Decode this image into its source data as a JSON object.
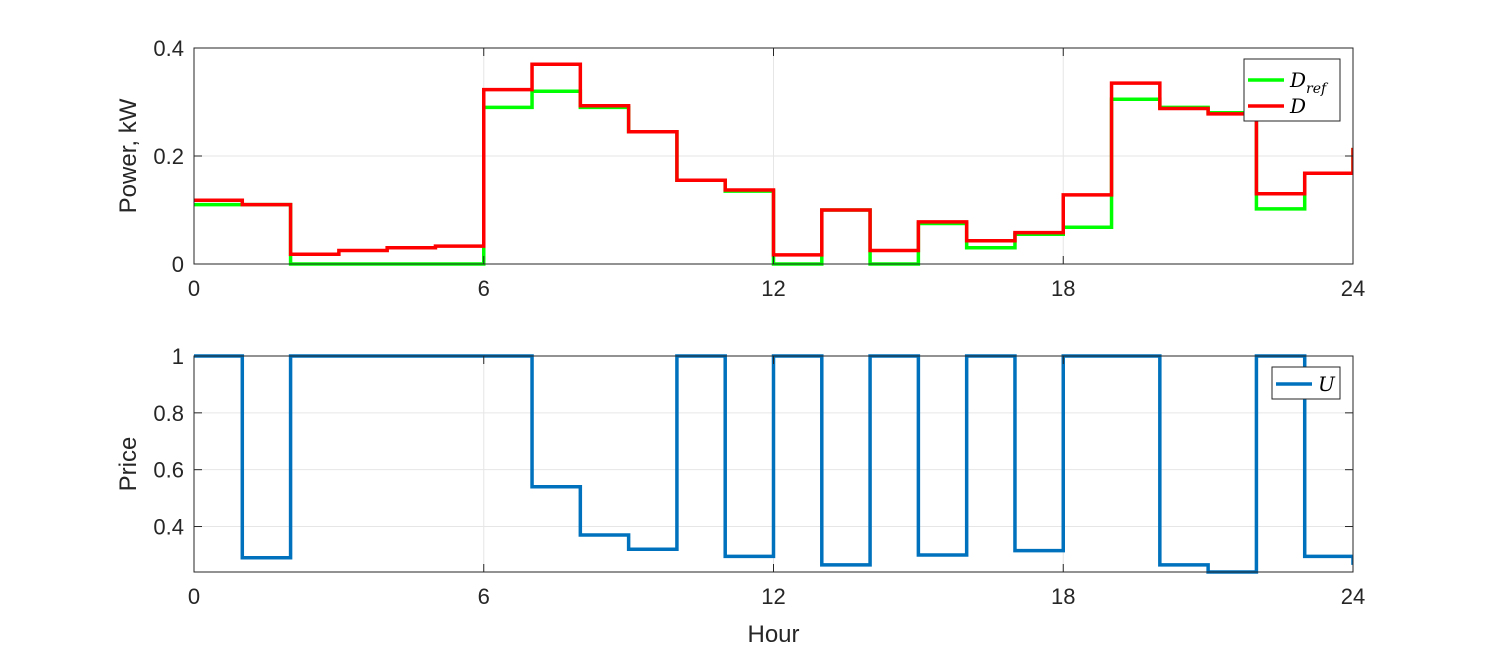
{
  "chart_data": [
    {
      "type": "line",
      "style": "stairs",
      "x_axis": {
        "label": "",
        "ticks": [
          "0",
          "6",
          "12",
          "18",
          "24"
        ],
        "range": [
          0,
          24
        ]
      },
      "y_axis": {
        "label": "Power, kW",
        "ticks": [
          "0",
          "0.2",
          "0.4"
        ],
        "range": [
          0,
          0.4
        ]
      },
      "grid": true,
      "legend": {
        "placement": "top-right"
      },
      "series": [
        {
          "name": "D_ref",
          "legend_main": "D",
          "legend_sub": "ref",
          "color": "#00ff00",
          "values": [
            0.11,
            0.11,
            0.0,
            0.0,
            0.0,
            0.0,
            0.29,
            0.32,
            0.29,
            0.245,
            0.155,
            0.135,
            0.0,
            0.1,
            0.0,
            0.075,
            0.03,
            0.055,
            0.068,
            0.305,
            0.29,
            0.28,
            0.102,
            0.168,
            0.215
          ]
        },
        {
          "name": "D",
          "legend_main": "D",
          "legend_sub": "",
          "color": "#ff0000",
          "values": [
            0.118,
            0.11,
            0.018,
            0.025,
            0.03,
            0.033,
            0.323,
            0.37,
            0.293,
            0.245,
            0.155,
            0.137,
            0.017,
            0.1,
            0.025,
            0.078,
            0.043,
            0.058,
            0.128,
            0.335,
            0.288,
            0.278,
            0.13,
            0.168,
            0.215
          ]
        }
      ]
    },
    {
      "type": "line",
      "style": "stairs",
      "x_axis": {
        "label": "Hour",
        "ticks": [
          "0",
          "6",
          "12",
          "18",
          "24"
        ],
        "range": [
          0,
          24
        ]
      },
      "y_axis": {
        "label": "Price",
        "ticks": [
          "0.4",
          "0.6",
          "0.8",
          "1"
        ],
        "range": [
          0.24,
          1.0
        ]
      },
      "grid": true,
      "legend": {
        "placement": "top-right"
      },
      "series": [
        {
          "name": "U",
          "legend_main": "U",
          "legend_sub": "",
          "color": "#0072bd",
          "values": [
            1.0,
            0.29,
            1.0,
            1.0,
            1.0,
            1.0,
            1.0,
            0.54,
            0.37,
            0.32,
            1.0,
            0.295,
            1.0,
            0.265,
            1.0,
            0.3,
            1.0,
            0.315,
            1.0,
            1.0,
            0.265,
            0.24,
            1.0,
            0.295,
            0.265
          ]
        }
      ]
    }
  ]
}
